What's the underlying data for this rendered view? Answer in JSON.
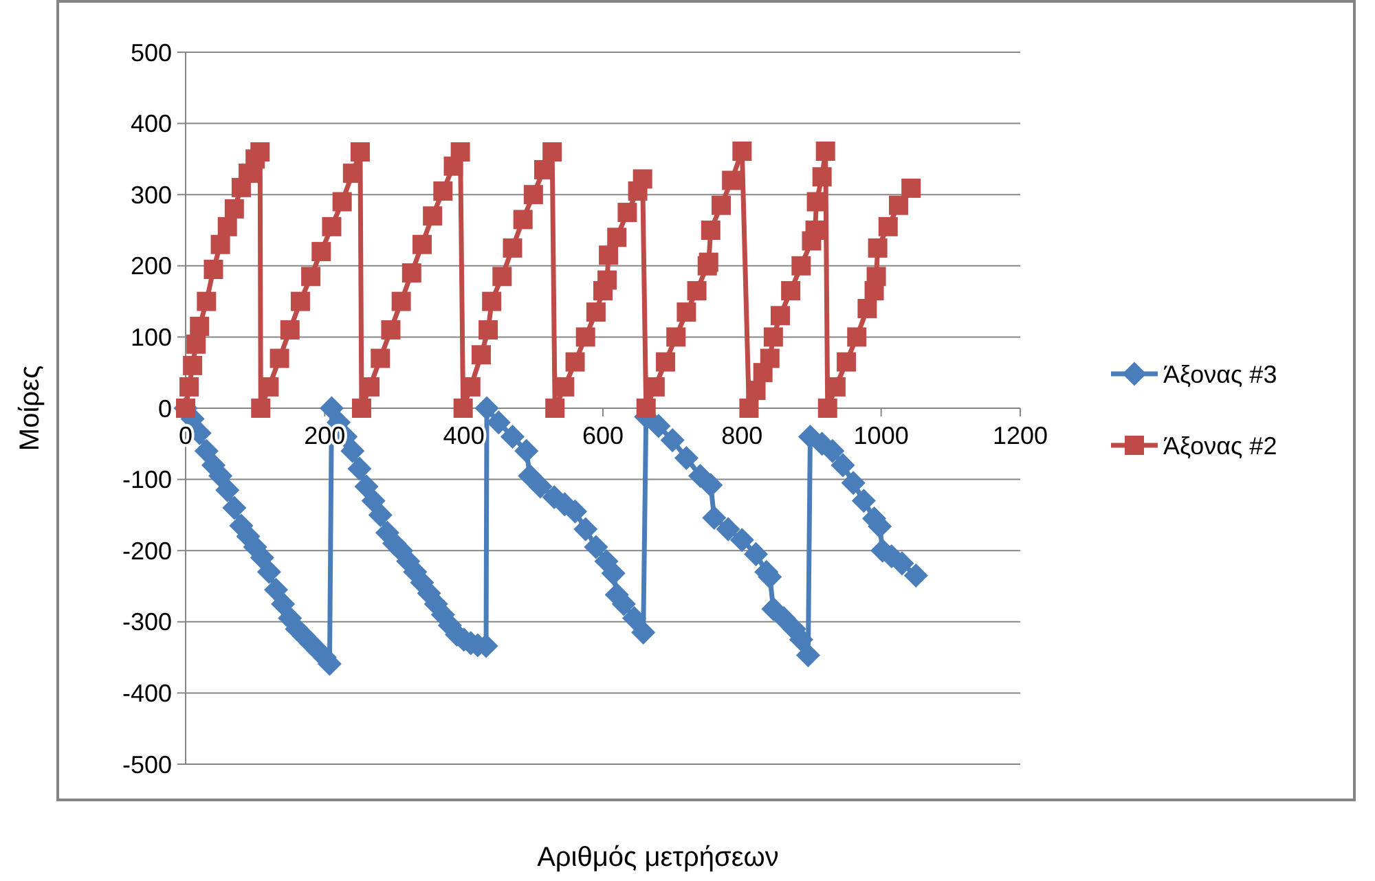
{
  "chart_data": {
    "type": "line",
    "xlabel": "Αριθμός μετρήσεων",
    "ylabel": "Μοίρες",
    "xlim": [
      0,
      1200
    ],
    "xticks": [
      0,
      200,
      400,
      600,
      800,
      1000,
      1200
    ],
    "ylim": [
      -500,
      500
    ],
    "yticks": [
      -500,
      -400,
      -300,
      -200,
      -100,
      0,
      100,
      200,
      300,
      400,
      500
    ],
    "grid": "y",
    "legend": "right",
    "series": [
      {
        "name": "Άξονας #3",
        "color": "#4a7ebb",
        "marker": "diamond",
        "x": [
          0,
          10,
          20,
          30,
          40,
          50,
          60,
          70,
          80,
          90,
          100,
          110,
          120,
          130,
          140,
          150,
          160,
          170,
          180,
          190,
          200,
          207,
          210,
          220,
          230,
          240,
          250,
          260,
          270,
          280,
          290,
          300,
          310,
          320,
          330,
          340,
          350,
          360,
          370,
          380,
          390,
          400,
          410,
          420,
          432,
          433,
          450,
          470,
          490,
          495,
          510,
          530,
          545,
          560,
          575,
          590,
          605,
          615,
          620,
          630,
          645,
          658,
          662,
          680,
          700,
          720,
          740,
          755,
          760,
          780,
          800,
          820,
          835,
          840,
          845,
          860,
          875,
          885,
          895,
          898,
          915,
          930,
          945,
          960,
          975,
          990,
          998,
          1002,
          1015,
          1030,
          1050
        ],
        "values": [
          0,
          -15,
          -35,
          -60,
          -80,
          -95,
          -115,
          -140,
          -165,
          -180,
          -195,
          -210,
          -230,
          -255,
          -275,
          -295,
          -310,
          -320,
          -330,
          -340,
          -350,
          -359,
          0,
          -20,
          -40,
          -60,
          -85,
          -110,
          -130,
          -150,
          -175,
          -190,
          -200,
          -215,
          -230,
          -245,
          -260,
          -275,
          -290,
          -305,
          -318,
          -325,
          -330,
          -333,
          -334,
          0,
          -20,
          -40,
          -60,
          -95,
          -110,
          -125,
          -135,
          -145,
          -170,
          -195,
          -215,
          -232,
          -262,
          -275,
          -295,
          -315,
          -12,
          -25,
          -45,
          -70,
          -95,
          -108,
          -154,
          -170,
          -185,
          -205,
          -230,
          -237,
          -282,
          -295,
          -310,
          -325,
          -347,
          -40,
          -50,
          -60,
          -80,
          -105,
          -130,
          -155,
          -166,
          -200,
          -208,
          -218,
          -235
        ]
      },
      {
        "name": "Άξονας #2",
        "color": "#be4b48",
        "marker": "square",
        "x": [
          0,
          5,
          10,
          15,
          20,
          30,
          40,
          50,
          60,
          70,
          80,
          90,
          100,
          107,
          108,
          120,
          135,
          150,
          165,
          180,
          195,
          210,
          225,
          240,
          251,
          253,
          265,
          280,
          295,
          310,
          325,
          340,
          355,
          370,
          385,
          395,
          399,
          410,
          425,
          435,
          440,
          455,
          470,
          485,
          500,
          515,
          527,
          531,
          545,
          560,
          575,
          590,
          600,
          606,
          608,
          620,
          635,
          650,
          657,
          662,
          675,
          690,
          705,
          720,
          735,
          750,
          752,
          755,
          770,
          785,
          800,
          810,
          820,
          830,
          840,
          845,
          855,
          870,
          885,
          900,
          905,
          907,
          915,
          920,
          923,
          935,
          950,
          965,
          980,
          990,
          993,
          995,
          1010,
          1025,
          1043
        ],
        "values": [
          0,
          30,
          60,
          90,
          115,
          150,
          195,
          230,
          255,
          280,
          310,
          330,
          350,
          360,
          0,
          30,
          70,
          110,
          150,
          185,
          220,
          255,
          290,
          330,
          360,
          0,
          30,
          70,
          110,
          150,
          190,
          230,
          270,
          305,
          340,
          360,
          0,
          30,
          75,
          110,
          150,
          185,
          225,
          265,
          300,
          335,
          360,
          0,
          30,
          65,
          100,
          135,
          165,
          180,
          215,
          240,
          275,
          305,
          322,
          0,
          30,
          65,
          100,
          135,
          165,
          200,
          205,
          250,
          285,
          320,
          361,
          0,
          25,
          50,
          70,
          100,
          130,
          165,
          200,
          235,
          250,
          290,
          325,
          361,
          0,
          30,
          65,
          100,
          140,
          165,
          185,
          225,
          255,
          285,
          309
        ]
      }
    ]
  }
}
